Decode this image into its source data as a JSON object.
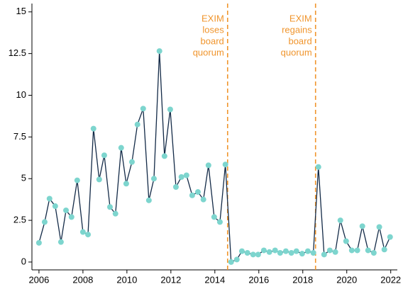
{
  "chart_data": {
    "type": "line",
    "x": [
      2006.0,
      2006.26,
      2006.48,
      2006.74,
      2007.0,
      2007.23,
      2007.48,
      2007.74,
      2008.0,
      2008.23,
      2008.48,
      2008.74,
      2008.97,
      2009.23,
      2009.48,
      2009.74,
      2009.97,
      2010.23,
      2010.48,
      2010.74,
      2011.0,
      2011.23,
      2011.48,
      2011.71,
      2011.97,
      2012.23,
      2012.48,
      2012.71,
      2012.97,
      2013.23,
      2013.48,
      2013.71,
      2013.97,
      2014.23,
      2014.48,
      2014.74,
      2015.0,
      2015.23,
      2015.48,
      2015.74,
      2015.97,
      2016.23,
      2016.48,
      2016.74,
      2016.97,
      2017.23,
      2017.48,
      2017.71,
      2017.97,
      2018.23,
      2018.48,
      2018.71,
      2018.97,
      2019.23,
      2019.48,
      2019.71,
      2019.97,
      2020.23,
      2020.48,
      2020.71,
      2020.97,
      2021.23,
      2021.48,
      2021.71,
      2021.97
    ],
    "series": [
      {
        "name": "EXIM",
        "color": "#132a47",
        "marker_color": "#7dd5ce",
        "values": [
          1.15,
          2.4,
          3.8,
          3.35,
          1.2,
          3.1,
          2.7,
          4.9,
          1.8,
          1.65,
          8.0,
          4.95,
          6.4,
          3.3,
          2.9,
          6.85,
          4.7,
          6.0,
          8.25,
          9.2,
          3.7,
          5.0,
          12.65,
          6.35,
          9.15,
          4.5,
          5.1,
          5.2,
          4.0,
          4.2,
          3.75,
          5.8,
          2.7,
          2.4,
          5.85,
          0.0,
          0.15,
          0.65,
          0.55,
          0.45,
          0.45,
          0.7,
          0.6,
          0.7,
          0.55,
          0.65,
          0.55,
          0.65,
          0.5,
          0.65,
          0.55,
          5.7,
          0.45,
          0.7,
          0.6,
          2.5,
          1.25,
          0.7,
          0.7,
          2.15,
          0.7,
          0.55,
          2.1,
          0.75,
          1.5
        ]
      }
    ],
    "xlim": [
      2005.68,
      2022.3
    ],
    "xticks": [
      2006,
      2008,
      2010,
      2012,
      2014,
      2016,
      2018,
      2020,
      2022
    ],
    "ylim": [
      -0.47,
      15.5
    ],
    "yticks": [
      0,
      2.5,
      5,
      7.5,
      10,
      12.5,
      15
    ],
    "annotations": [
      {
        "x": 2014.58,
        "lines": [
          "EXIM",
          "loses",
          "board",
          "quorum"
        ]
      },
      {
        "x": 2018.58,
        "lines": [
          "EXIM",
          "regains",
          "board",
          "quorum"
        ]
      }
    ],
    "annotation_color": "#f0952d"
  }
}
